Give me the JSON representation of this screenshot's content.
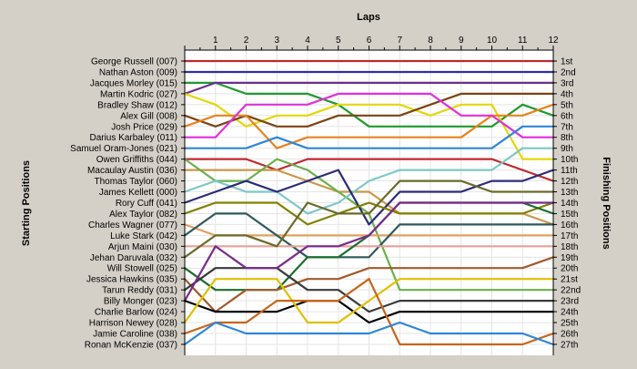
{
  "chart_data": {
    "type": "line",
    "title": "Laps",
    "ylabel_left": "Starting Positions",
    "ylabel_right": "Finishing Positions",
    "laps": [
      0,
      1,
      2,
      3,
      4,
      5,
      6,
      7,
      8,
      9,
      10,
      11,
      12
    ],
    "lap_tick_labels": [
      "1",
      "2",
      "3",
      "4",
      "5",
      "6",
      "7",
      "8",
      "9",
      "10",
      "11",
      "12"
    ],
    "grid": true,
    "starting_grid": [
      "George Russell (007)",
      "Nathan Aston (009)",
      "Jacques Morley (015)",
      "Martin Kodric (027)",
      "Bradley Shaw (012)",
      "Alex Gill (008)",
      "Josh Price (029)",
      "Darius Karbaley (011)",
      "Samuel Oram-Jones (021)",
      "Owen Griffiths (044)",
      "Macaulay Austin (036)",
      "Thomas Taylor (060)",
      "James Kellett (000)",
      "Rory Cuff (041)",
      "Alex Taylor (082)",
      "Charles Wagner (077)",
      "Luke Stark (042)",
      "Arjun Maini (030)",
      "Jehan Daruvala (032)",
      "Will Stowell (025)",
      "Jessica Hawkins (035)",
      "Tarun Reddy (031)",
      "Billy Monger (023)",
      "Charlie Barlow (024)",
      "Harrison Newey (028)",
      "Jamie Caroline (038)",
      "Ronan McKenzie (037)"
    ],
    "finishing_labels": [
      "1st",
      "2nd",
      "3rd",
      "4th",
      "5th",
      "6th",
      "7th",
      "8th",
      "9th",
      "10th",
      "11th",
      "12th",
      "13th",
      "14th",
      "15th",
      "16th",
      "17th",
      "18th",
      "19th",
      "20th",
      "21st",
      "22nd",
      "23rd",
      "24th",
      "25th",
      "26th",
      "27th"
    ],
    "series": [
      {
        "color": "#c0282d",
        "positions": [
          1,
          1,
          1,
          1,
          1,
          1,
          1,
          1,
          1,
          1,
          1,
          1,
          1
        ]
      },
      {
        "color": "#2f2fa8",
        "positions": [
          2,
          2,
          2,
          2,
          2,
          2,
          2,
          2,
          2,
          2,
          2,
          2,
          2
        ]
      },
      {
        "color": "#1e9a2e",
        "positions": [
          3,
          3,
          4,
          4,
          4,
          5,
          7,
          7,
          7,
          7,
          7,
          5,
          6
        ]
      },
      {
        "color": "#6a2e8e",
        "positions": [
          4,
          3,
          3,
          3,
          3,
          3,
          3,
          3,
          3,
          3,
          3,
          3,
          3
        ]
      },
      {
        "color": "#e2d80a",
        "positions": [
          4,
          5,
          7,
          6,
          6,
          5,
          5,
          5,
          6,
          5,
          5,
          10,
          10
        ]
      },
      {
        "color": "#7a4512",
        "positions": [
          6,
          7,
          6,
          7,
          7,
          6,
          6,
          6,
          5,
          4,
          4,
          4,
          4
        ]
      },
      {
        "color": "#e8821e",
        "positions": [
          7,
          6,
          6,
          9,
          8,
          8,
          8,
          8,
          8,
          8,
          6,
          6,
          5
        ]
      },
      {
        "color": "#e030d8",
        "positions": [
          8,
          8,
          5,
          5,
          5,
          4,
          4,
          4,
          4,
          6,
          6,
          8,
          8
        ]
      },
      {
        "color": "#2e86d8",
        "positions": [
          9,
          9,
          9,
          8,
          9,
          9,
          9,
          9,
          9,
          9,
          9,
          7,
          7
        ]
      },
      {
        "color": "#c0282d",
        "positions": [
          10,
          10,
          10,
          11,
          10,
          10,
          10,
          10,
          10,
          10,
          10,
          11,
          12
        ]
      },
      {
        "color": "#c89848",
        "positions": [
          11,
          11,
          11,
          11,
          12,
          13,
          13,
          15,
          15,
          15,
          15,
          15,
          16
        ]
      },
      {
        "color": "#6ab04c",
        "positions": [
          10,
          12,
          12,
          10,
          11,
          13,
          15,
          22,
          22,
          22,
          22,
          22,
          22
        ]
      },
      {
        "color": "#7fc7c7",
        "positions": [
          13,
          12,
          13,
          13,
          15,
          14,
          12,
          11,
          11,
          11,
          11,
          9,
          9
        ]
      },
      {
        "color": "#2b2b78",
        "positions": [
          14,
          13,
          12,
          13,
          12,
          11,
          16,
          13,
          13,
          13,
          12,
          12,
          11
        ]
      },
      {
        "color": "#808000",
        "positions": [
          15,
          14,
          14,
          14,
          16,
          15,
          14,
          15,
          15,
          15,
          15,
          15,
          14
        ]
      },
      {
        "color": "#e0a060",
        "positions": [
          16,
          17,
          17,
          17,
          17,
          17,
          17,
          17,
          17,
          17,
          17,
          17,
          17
        ]
      },
      {
        "color": "#2e5a5a",
        "positions": [
          17,
          15,
          15,
          17,
          19,
          19,
          19,
          16,
          16,
          16,
          16,
          16,
          16
        ]
      },
      {
        "color": "#e8a098",
        "positions": [
          18,
          18,
          18,
          18,
          18,
          18,
          18,
          18,
          18,
          18,
          18,
          18,
          18
        ]
      },
      {
        "color": "#6a6a2a",
        "positions": [
          19,
          17,
          17,
          18,
          14,
          15,
          15,
          12,
          12,
          12,
          13,
          13,
          13
        ]
      },
      {
        "color": "#1b6e2b",
        "positions": [
          20,
          22,
          22,
          22,
          19,
          19,
          17,
          14,
          14,
          14,
          14,
          14,
          15
        ]
      },
      {
        "color": "#a05a2c",
        "positions": [
          21,
          24,
          22,
          22,
          21,
          21,
          20,
          20,
          20,
          20,
          20,
          20,
          19
        ]
      },
      {
        "color": "#3a3a3a",
        "positions": [
          22,
          20,
          20,
          20,
          22,
          22,
          24,
          23,
          23,
          23,
          23,
          23,
          23
        ]
      },
      {
        "color": "#7a2b8a",
        "positions": [
          23,
          18,
          20,
          20,
          18,
          18,
          17,
          14,
          14,
          14,
          14,
          14,
          14
        ]
      },
      {
        "color": "#000000",
        "positions": [
          23,
          24,
          24,
          24,
          23,
          23,
          25,
          24,
          24,
          24,
          24,
          24,
          24
        ]
      },
      {
        "color": "#e0c000",
        "positions": [
          25,
          21,
          21,
          21,
          25,
          25,
          23,
          21,
          21,
          21,
          21,
          21,
          21
        ]
      },
      {
        "color": "#c86418",
        "positions": [
          26,
          25,
          25,
          23,
          23,
          23,
          21,
          27,
          27,
          27,
          27,
          27,
          26
        ]
      },
      {
        "color": "#2e86d8",
        "positions": [
          27,
          25,
          26,
          26,
          26,
          26,
          26,
          25,
          26,
          26,
          26,
          26,
          27
        ]
      }
    ]
  }
}
